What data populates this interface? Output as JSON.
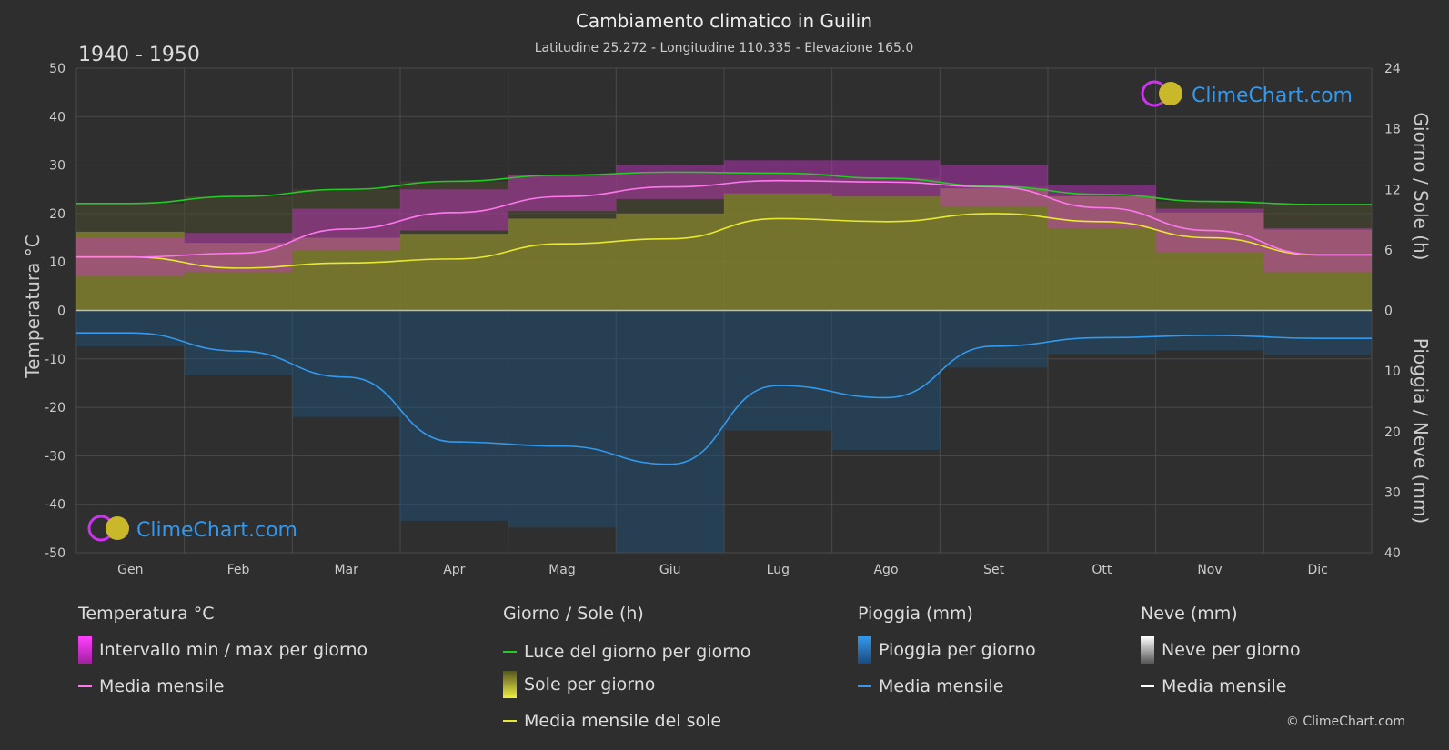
{
  "header": {
    "title": "Cambiamento climatico in Guilin",
    "subtitle": "Latitudine 25.272 - Longitudine 110.335 - Elevazione 165.0",
    "period": "1940 - 1950"
  },
  "brand": {
    "logo_text": "ClimeChart.com",
    "copyright": "© ClimeChart.com"
  },
  "chart_data": {
    "type": "area",
    "months": [
      "Gen",
      "Feb",
      "Mar",
      "Apr",
      "Mag",
      "Giu",
      "Lug",
      "Ago",
      "Set",
      "Ott",
      "Nov",
      "Dic"
    ],
    "y_left": {
      "label": "Temperatura °C",
      "min": -50,
      "max": 50,
      "ticks": [
        "50",
        "40",
        "30",
        "20",
        "10",
        "0",
        "-10",
        "-20",
        "-30",
        "-40",
        "-50"
      ]
    },
    "y_right_top": {
      "label": "Giorno / Sole (h)",
      "min": 0,
      "max": 24,
      "ticks": [
        "24",
        "18",
        "12",
        "6",
        "0"
      ]
    },
    "y_right_bottom": {
      "label": "Pioggia / Neve (mm)",
      "min": 0,
      "max": 40,
      "ticks": [
        "0",
        "10",
        "20",
        "30",
        "40"
      ]
    },
    "grid": true,
    "series": [
      {
        "name": "Luce del giorno per giorno",
        "unit": "h",
        "color": "#22cc22",
        "values": [
          10.6,
          11.3,
          12.0,
          12.8,
          13.4,
          13.7,
          13.6,
          13.1,
          12.3,
          11.5,
          10.8,
          10.5
        ]
      },
      {
        "name": "Media mensile del sole",
        "unit": "h",
        "color": "#e8e830",
        "values": [
          5.3,
          4.2,
          4.7,
          5.1,
          6.6,
          7.1,
          9.1,
          8.8,
          9.6,
          8.8,
          7.2,
          5.5
        ]
      },
      {
        "name": "Media mensile (temperatura)",
        "unit": "°C",
        "color": "#ff77ee",
        "values": [
          11.0,
          11.8,
          16.8,
          20.2,
          23.5,
          25.5,
          26.8,
          26.5,
          25.5,
          21.2,
          16.5,
          11.5
        ]
      },
      {
        "name": "Media mensile (pioggia)",
        "unit": "mm",
        "color": "#3399ee",
        "values": [
          3.7,
          6.7,
          11.0,
          21.7,
          22.4,
          25.4,
          12.4,
          14.4,
          5.9,
          4.5,
          4.1,
          4.6
        ]
      },
      {
        "name": "Intervallo min / max per giorno",
        "unit": "°C",
        "color": "#cc33cc",
        "min": [
          7.0,
          8.0,
          12.5,
          16.5,
          20.5,
          23.0,
          24.0,
          23.5,
          21.5,
          17.0,
          12.0,
          8.0
        ],
        "max": [
          15.0,
          16.0,
          21.0,
          25.0,
          28.0,
          30.0,
          31.0,
          31.0,
          30.0,
          26.0,
          21.0,
          17.0
        ]
      }
    ]
  },
  "legend": {
    "groups": [
      {
        "title": "Temperatura °C",
        "items": [
          {
            "label": "Intervallo min / max per giorno",
            "swatch": "bar",
            "color": "#e020e0"
          },
          {
            "label": "Media mensile",
            "swatch": "line",
            "color": "#ff77ee"
          }
        ]
      },
      {
        "title": "Giorno / Sole (h)",
        "items": [
          {
            "label": "Luce del giorno per giorno",
            "swatch": "line",
            "color": "#22cc22"
          },
          {
            "label": "Sole per giorno",
            "swatch": "bar",
            "color": "#d8d830"
          },
          {
            "label": "Media mensile del sole",
            "swatch": "line",
            "color": "#e8e830"
          }
        ]
      },
      {
        "title": "Pioggia (mm)",
        "items": [
          {
            "label": "Pioggia per giorno",
            "swatch": "bar",
            "color": "#2a7fd4"
          },
          {
            "label": "Media mensile",
            "swatch": "line",
            "color": "#3399ee"
          }
        ]
      },
      {
        "title": "Neve (mm)",
        "items": [
          {
            "label": "Neve per giorno",
            "swatch": "bar",
            "color": "#bbbbbb"
          },
          {
            "label": "Media mensile",
            "swatch": "line",
            "color": "#ffffff"
          }
        ]
      }
    ]
  }
}
